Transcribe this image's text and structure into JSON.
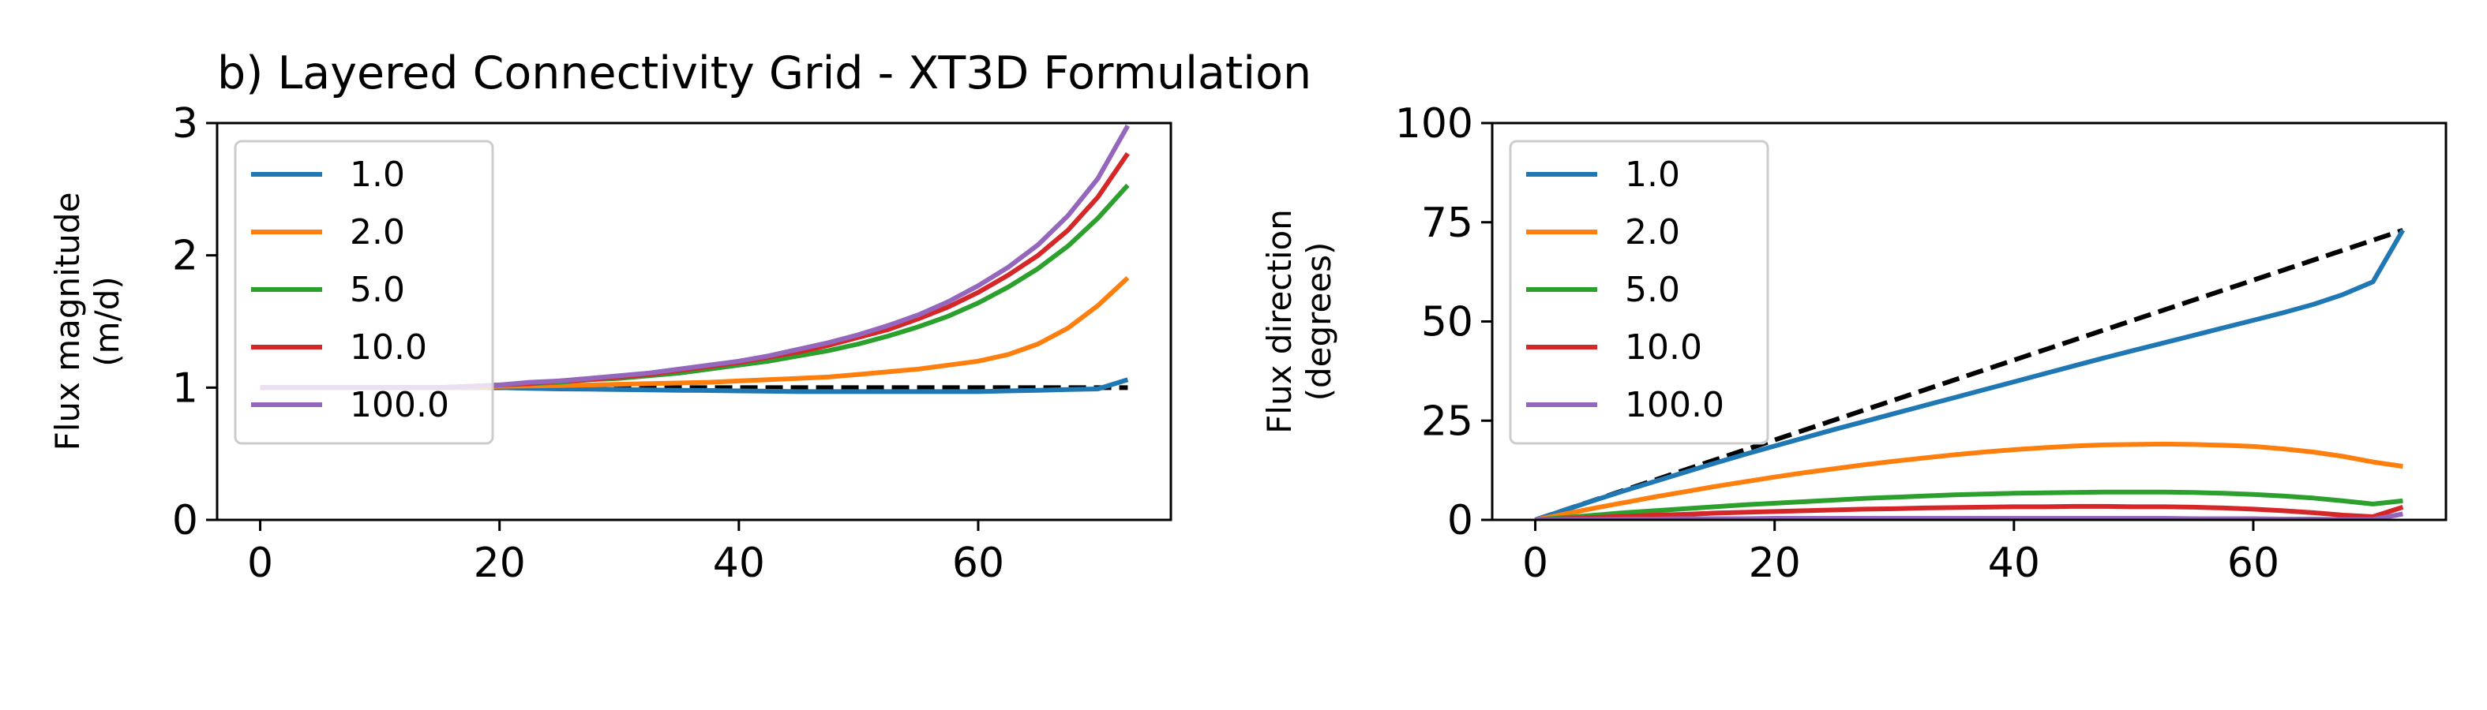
{
  "title": "b) Layered Connectivity Grid - XT3D Formulation",
  "chart_data": [
    {
      "type": "line",
      "title": "b) Layered Connectivity Grid - XT3D Formulation",
      "xlabel": "",
      "ylabel": "Flux magnitude\n(m/d)",
      "ylabel_lines": [
        "Flux magnitude",
        "(m/d)"
      ],
      "xlim": [
        -3.6,
        76.1
      ],
      "ylim": [
        0,
        3
      ],
      "xticks": [
        0,
        20,
        40,
        60
      ],
      "xtick_labels": [
        "0",
        "20",
        "40",
        "60"
      ],
      "yticks": [
        0,
        1,
        2,
        3
      ],
      "ytick_labels": [
        "0",
        "1",
        "2",
        "3"
      ],
      "grid": false,
      "legend_location": "upper left",
      "x": [
        0,
        2.5,
        5,
        7.5,
        10,
        12.5,
        15,
        17.5,
        20,
        22.5,
        25,
        27.5,
        30,
        32.5,
        35,
        37.5,
        40,
        42.5,
        45,
        47.5,
        50,
        52.5,
        55,
        57.5,
        60,
        62.5,
        65,
        67.5,
        70,
        72.5
      ],
      "series": [
        {
          "name": "1.0",
          "color": "#1f77b4",
          "values": [
            1.0,
            1.0,
            1.0,
            1.0,
            1.0,
            1.0,
            1.0,
            1.0,
            1.0,
            0.995,
            0.99,
            0.988,
            0.985,
            0.983,
            0.98,
            0.978,
            0.975,
            0.973,
            0.97,
            0.97,
            0.97,
            0.97,
            0.97,
            0.97,
            0.97,
            0.975,
            0.98,
            0.985,
            0.99,
            1.06
          ]
        },
        {
          "name": "2.0",
          "color": "#ff7f0e",
          "values": [
            1.0,
            1.0,
            1.0,
            1.0,
            1.0,
            1.0,
            1.0,
            1.0,
            1.01,
            1.012,
            1.015,
            1.02,
            1.025,
            1.03,
            1.035,
            1.04,
            1.05,
            1.06,
            1.07,
            1.08,
            1.1,
            1.12,
            1.14,
            1.17,
            1.2,
            1.25,
            1.33,
            1.45,
            1.62,
            1.83
          ]
        },
        {
          "name": "5.0",
          "color": "#2ca02c",
          "values": [
            1.0,
            1.0,
            1.0,
            1.0,
            1.0,
            1.0,
            1.0,
            1.01,
            1.02,
            1.03,
            1.04,
            1.06,
            1.07,
            1.09,
            1.11,
            1.14,
            1.17,
            1.2,
            1.24,
            1.28,
            1.33,
            1.39,
            1.46,
            1.54,
            1.64,
            1.76,
            1.9,
            2.07,
            2.28,
            2.53
          ]
        },
        {
          "name": "10.0",
          "color": "#d62728",
          "values": [
            1.0,
            1.0,
            1.0,
            1.0,
            1.0,
            1.0,
            1.0,
            1.01,
            1.02,
            1.03,
            1.05,
            1.06,
            1.08,
            1.1,
            1.13,
            1.16,
            1.19,
            1.23,
            1.27,
            1.32,
            1.38,
            1.44,
            1.52,
            1.61,
            1.72,
            1.85,
            2.0,
            2.19,
            2.44,
            2.77
          ]
        },
        {
          "name": "100.0",
          "color": "#9467bd",
          "values": [
            1.0,
            1.0,
            1.0,
            1.0,
            1.0,
            1.0,
            1.0,
            1.01,
            1.02,
            1.04,
            1.05,
            1.07,
            1.09,
            1.11,
            1.14,
            1.17,
            1.2,
            1.24,
            1.29,
            1.34,
            1.4,
            1.47,
            1.55,
            1.65,
            1.77,
            1.91,
            2.08,
            2.3,
            2.58,
            2.98
          ]
        }
      ],
      "reference_line": {
        "color": "#000000",
        "style": "dashed",
        "x": [
          0,
          72.5
        ],
        "values": [
          1.0,
          1.0
        ]
      }
    },
    {
      "type": "line",
      "title": "",
      "xlabel": "",
      "ylabel": "Flux direction\n(degrees)",
      "ylabel_lines": [
        "Flux direction",
        "(degrees)"
      ],
      "xlim": [
        -3.6,
        76.1
      ],
      "ylim": [
        0,
        100
      ],
      "xticks": [
        0,
        20,
        40,
        60
      ],
      "xtick_labels": [
        "0",
        "20",
        "40",
        "60"
      ],
      "yticks": [
        0,
        25,
        50,
        75,
        100
      ],
      "ytick_labels": [
        "0",
        "25",
        "50",
        "75",
        "100"
      ],
      "grid": false,
      "legend_location": "upper left",
      "x": [
        0,
        2.5,
        5,
        7.5,
        10,
        12.5,
        15,
        17.5,
        20,
        22.5,
        25,
        27.5,
        30,
        32.5,
        35,
        37.5,
        40,
        42.5,
        45,
        47.5,
        50,
        52.5,
        55,
        57.5,
        60,
        62.5,
        65,
        67.5,
        70,
        72.5
      ],
      "series": [
        {
          "name": "1.0",
          "color": "#1f77b4",
          "values": [
            0,
            2.5,
            5,
            7.4,
            9.7,
            12,
            14.3,
            16.5,
            18.6,
            20.7,
            22.8,
            24.8,
            26.8,
            28.8,
            30.8,
            32.8,
            34.8,
            36.8,
            38.8,
            40.8,
            42.7,
            44.6,
            46.5,
            48.4,
            50.3,
            52.2,
            54.3,
            56.8,
            60,
            73
          ]
        },
        {
          "name": "2.0",
          "color": "#ff7f0e",
          "values": [
            0,
            1.5,
            3,
            4.4,
            5.8,
            7.1,
            8.4,
            9.6,
            10.8,
            11.9,
            12.9,
            13.9,
            14.8,
            15.6,
            16.4,
            17.1,
            17.7,
            18.2,
            18.6,
            18.9,
            19.0,
            19.1,
            19.0,
            18.8,
            18.5,
            17.9,
            17.1,
            16.0,
            14.6,
            13.5
          ]
        },
        {
          "name": "5.0",
          "color": "#2ca02c",
          "values": [
            0,
            0.6,
            1.2,
            1.8,
            2.3,
            2.8,
            3.3,
            3.8,
            4.2,
            4.6,
            5.0,
            5.4,
            5.7,
            6.0,
            6.3,
            6.5,
            6.7,
            6.8,
            6.9,
            7.0,
            7.0,
            7.0,
            6.9,
            6.7,
            6.4,
            6.0,
            5.5,
            4.8,
            4.0,
            4.8
          ]
        },
        {
          "name": "10.0",
          "color": "#d62728",
          "values": [
            0,
            0.3,
            0.6,
            0.9,
            1.2,
            1.4,
            1.7,
            1.9,
            2.1,
            2.3,
            2.5,
            2.7,
            2.8,
            3.0,
            3.1,
            3.2,
            3.3,
            3.3,
            3.4,
            3.4,
            3.3,
            3.3,
            3.2,
            3.0,
            2.7,
            2.3,
            1.8,
            1.2,
            0.8,
            3.2
          ]
        },
        {
          "name": "100.0",
          "color": "#9467bd",
          "values": [
            0,
            0.1,
            0.1,
            0.2,
            0.2,
            0.3,
            0.3,
            0.3,
            0.4,
            0.4,
            0.4,
            0.4,
            0.4,
            0.4,
            0.4,
            0.4,
            0.4,
            0.4,
            0.4,
            0.4,
            0.4,
            0.4,
            0.3,
            0.3,
            0.3,
            0.2,
            0.2,
            0.1,
            0.1,
            1.5
          ]
        }
      ],
      "reference_line": {
        "color": "#000000",
        "style": "dashed",
        "x": [
          0,
          72.5
        ],
        "values": [
          0,
          73
        ]
      }
    }
  ]
}
